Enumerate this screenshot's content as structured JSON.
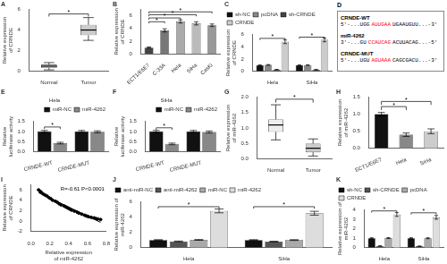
{
  "chart_data": [
    {
      "type": "box",
      "title": "A",
      "ylabel": "Relative expression\nof CRNDE",
      "categories": [
        "Normal",
        "Tumor"
      ],
      "boxes": [
        {
          "median": 0.5,
          "q1": 0.35,
          "q3": 0.65,
          "whisker_low": 0.15,
          "whisker_high": 0.85
        },
        {
          "median": 4.0,
          "q1": 3.5,
          "q3": 4.5,
          "whisker_low": 3.0,
          "whisker_high": 5.2
        }
      ],
      "colors": [
        "#eeeeee",
        "#cccccc"
      ],
      "ylim": [
        0,
        6
      ],
      "yticks": [
        0,
        2,
        4,
        6
      ],
      "grid": false,
      "brackets": [
        {
          "from": 0,
          "to": 1,
          "y": 5.3,
          "top": 5.55,
          "label": "*"
        }
      ]
    },
    {
      "type": "bar",
      "title": "B",
      "ylabel": "Relative expression\nof CRNDE",
      "categories": [
        "ECT1/E6E7",
        "C-33A",
        "Hela",
        "SiHa",
        "CasKi"
      ],
      "values": [
        1.0,
        3.7,
        5.1,
        4.8,
        4.5
      ],
      "errors": [
        0.1,
        0.25,
        0.25,
        0.25,
        0.2
      ],
      "colors": [
        "#444444",
        "#777777",
        "#aaaaaa",
        "#bbbbbb",
        "#999999"
      ],
      "ylim": [
        0,
        7
      ],
      "yticks": [
        0,
        2,
        4,
        6
      ],
      "grid": false,
      "brackets": [
        {
          "from": 0,
          "to": 1,
          "y": 4.8,
          "top": 5.05,
          "label": "*"
        },
        {
          "from": 0,
          "to": 2,
          "y": 5.4,
          "top": 5.65,
          "label": "*"
        },
        {
          "from": 0,
          "to": 3,
          "y": 5.9,
          "top": 6.15,
          "label": "*"
        },
        {
          "from": 0,
          "to": 4,
          "y": 6.35,
          "top": 6.6,
          "label": "*"
        }
      ]
    },
    {
      "type": "bar",
      "title": "C",
      "ylabel": "Relative expression\nof CRNDE",
      "categories": [
        "Hela",
        "SiHa"
      ],
      "series": [
        {
          "name": "sh-NC",
          "color": "#111111",
          "values": [
            1.0,
            1.0
          ],
          "errors": [
            0.05,
            0.05
          ]
        },
        {
          "name": "pcDNA",
          "color": "#888888",
          "values": [
            1.05,
            1.02
          ],
          "errors": [
            0.06,
            0.05
          ]
        },
        {
          "name": "sh-CRNDE",
          "color": "#444444",
          "values": [
            0.3,
            0.28
          ],
          "errors": [
            0.03,
            0.03
          ]
        },
        {
          "name": "CRNDE",
          "color": "#cccccc",
          "values": [
            4.8,
            5.1
          ],
          "errors": [
            0.3,
            0.3
          ]
        }
      ],
      "ylim": [
        0,
        6
      ],
      "yticks": [
        0,
        2,
        4,
        6
      ],
      "legend": "upper left",
      "grid": false,
      "brackets": [
        {
          "group": 0,
          "from": 0,
          "to": 3,
          "y": 5.1,
          "top": 5.35,
          "label": "*"
        },
        {
          "group": 1,
          "from": 0,
          "to": 3,
          "y": 5.3,
          "top": 5.55,
          "label": "*"
        }
      ]
    },
    {
      "type": "sequence",
      "title": "D",
      "rows": [
        {
          "name": "CRNDE-WT",
          "segments": [
            {
              "text": "5'-...UGG",
              "color": "black"
            },
            {
              "text": "AUUGAA",
              "color": "red"
            },
            {
              "text": "UGAAUGUU...-3'",
              "color": "black"
            }
          ]
        },
        {
          "name": "miR-4262",
          "segments": [
            {
              "text": "3'-...GU",
              "color": "black"
            },
            {
              "text": "CCAUCAG",
              "color": "red"
            },
            {
              "text": "ACUUACAG...-5'",
              "color": "black"
            }
          ]
        },
        {
          "name": "CRNDE-MUT",
          "segments": [
            {
              "text": "5'-...UGU",
              "color": "black"
            },
            {
              "text": "AGUAAA",
              "color": "red"
            },
            {
              "text": "CAGCGACU...-3'",
              "color": "black"
            }
          ]
        }
      ]
    },
    {
      "type": "bar",
      "title": "E",
      "subtitle": "Hela",
      "ylabel": "Relative\nluciferase activity",
      "categories": [
        "CRNDE-WT",
        "CRNDE-MUT"
      ],
      "series": [
        {
          "name": "miR-NC",
          "color": "#111111",
          "values": [
            1.0,
            1.0
          ],
          "errors": [
            0.05,
            0.05
          ]
        },
        {
          "name": "miR-4262",
          "color": "#888888",
          "values": [
            0.42,
            0.98
          ],
          "errors": [
            0.04,
            0.05
          ]
        }
      ],
      "ylim": [
        0,
        1.5
      ],
      "yticks": [
        {
          "value": 0,
          "label": "0.0"
        },
        0.5,
        {
          "value": 1,
          "label": "1.0"
        },
        1.5
      ],
      "legend": "upper right",
      "grid": false,
      "brackets": [
        {
          "group": 0,
          "from": 0,
          "to": 1,
          "y": 1.12,
          "top": 1.22,
          "label": "*"
        }
      ]
    },
    {
      "type": "bar",
      "title": "F",
      "subtitle": "SiHa",
      "ylabel": "Relative\nluciferase activity",
      "categories": [
        "CRNDE-WT",
        "CRNDE-MUT"
      ],
      "series": [
        {
          "name": "miR-NC",
          "color": "#111111",
          "values": [
            1.0,
            1.0
          ],
          "errors": [
            0.05,
            0.05
          ]
        },
        {
          "name": "miR-4262",
          "color": "#888888",
          "values": [
            0.38,
            0.97
          ],
          "errors": [
            0.04,
            0.05
          ]
        }
      ],
      "ylim": [
        0,
        1.5
      ],
      "yticks": [
        {
          "value": 0,
          "label": "0.0"
        },
        0.5,
        {
          "value": 1,
          "label": "1.0"
        },
        1.5
      ],
      "legend": "upper right",
      "grid": false,
      "brackets": [
        {
          "group": 0,
          "from": 0,
          "to": 1,
          "y": 1.08,
          "top": 1.18,
          "label": "*"
        }
      ]
    },
    {
      "type": "box",
      "title": "G",
      "ylabel": "Relative expression\nof miR-4262",
      "categories": [
        "Normal",
        "Tumor"
      ],
      "boxes": [
        {
          "median": 1.1,
          "q1": 0.88,
          "q3": 1.28,
          "whisker_low": 0.62,
          "whisker_high": 1.75
        },
        {
          "median": 0.35,
          "q1": 0.22,
          "q3": 0.5,
          "whisker_low": 0.1,
          "whisker_high": 0.65
        }
      ],
      "colors": [
        "#eeeeee",
        "#cccccc"
      ],
      "ylim": [
        0,
        2.0
      ],
      "yticks": [
        {
          "value": 0,
          "label": "0.0"
        },
        0.5,
        {
          "value": 1,
          "label": "1.0"
        },
        1.5,
        {
          "value": 2,
          "label": "2.0"
        }
      ],
      "grid": false,
      "brackets": [
        {
          "from": 0,
          "to": 1,
          "y": 1.82,
          "top": 1.93,
          "label": "*"
        }
      ]
    },
    {
      "type": "bar",
      "title": "H",
      "ylabel": "Relative expression\nof miR-4262",
      "categories": [
        "ECT1/E6E7",
        "Hela",
        "SiHa"
      ],
      "values": [
        1.0,
        0.4,
        0.5
      ],
      "errors": [
        0.05,
        0.05,
        0.07
      ],
      "colors": [
        "#111111",
        "#888888",
        "#cccccc"
      ],
      "ylim": [
        0,
        1.5
      ],
      "yticks": [
        {
          "value": 0,
          "label": "0.0"
        },
        0.5,
        {
          "value": 1,
          "label": "1.0"
        },
        1.5
      ],
      "grid": false,
      "brackets": [
        {
          "from": 0,
          "to": 1,
          "y": 1.12,
          "top": 1.22,
          "label": "*"
        },
        {
          "from": 0,
          "to": 2,
          "y": 1.27,
          "top": 1.37,
          "label": "*"
        }
      ]
    },
    {
      "type": "scatter",
      "title": "I",
      "xlabel": "Relative expression\nof miR-4262",
      "ylabel": "Relative expression\nof CRNDE",
      "annotation": "R=-0.61 P<0.0001",
      "color": "#000000",
      "x": [
        0.08,
        0.1,
        0.11,
        0.13,
        0.15,
        0.17,
        0.19,
        0.21,
        0.23,
        0.26,
        0.28,
        0.3,
        0.32,
        0.35,
        0.37,
        0.39,
        0.41,
        0.43,
        0.46,
        0.49,
        0.51,
        0.54,
        0.57,
        0.59,
        0.61,
        0.64,
        0.67,
        0.69,
        0.71,
        0.74
      ],
      "values": [
        6.0,
        5.7,
        5.5,
        5.2,
        5.0,
        4.8,
        4.5,
        4.3,
        4.0,
        3.8,
        3.6,
        3.3,
        3.1,
        2.9,
        2.7,
        2.5,
        2.3,
        2.1,
        1.9,
        1.7,
        1.5,
        1.3,
        1.1,
        0.95,
        0.82,
        0.7,
        0.58,
        0.46,
        0.38,
        0.28
      ],
      "fit": {
        "x": [
          0.08,
          0.74
        ],
        "values": [
          5.462,
          -0.2786
        ]
      },
      "xlim": [
        0.0,
        0.8
      ],
      "xticks": [
        {
          "value": 0,
          "label": "0.0"
        },
        0.2,
        0.4,
        0.6,
        0.8
      ],
      "ylim": [
        -2,
        7
      ],
      "yticks": [
        -2,
        0,
        2,
        4,
        6
      ],
      "grid": false
    },
    {
      "type": "bar",
      "title": "J",
      "ylabel": "Relative expression of\nmiR-4262",
      "categories": [
        "Hela",
        "SiHa"
      ],
      "series": [
        {
          "name": "anti-miR-NC",
          "color": "#111111",
          "values": [
            1.0,
            1.0
          ],
          "errors": [
            0.05,
            0.05
          ]
        },
        {
          "name": "anti-miR-4262",
          "color": "#555555",
          "values": [
            0.82,
            0.8
          ],
          "errors": [
            0.05,
            0.05
          ]
        },
        {
          "name": "miR-NC",
          "color": "#aaaaaa",
          "values": [
            1.02,
            1.0
          ],
          "errors": [
            0.05,
            0.05
          ]
        },
        {
          "name": "miR-4262",
          "color": "#dddddd",
          "values": [
            4.8,
            4.5
          ],
          "errors": [
            0.25,
            0.25
          ]
        }
      ],
      "ylim": [
        0,
        6
      ],
      "yticks": [
        0,
        2,
        4,
        6
      ],
      "legend": "upper left",
      "grid": false,
      "brackets": [
        {
          "group": 0,
          "from": 0,
          "to": 3,
          "y": 5.1,
          "top": 5.35,
          "label": "*"
        },
        {
          "group": 1,
          "from": 0,
          "to": 3,
          "y": 5.1,
          "top": 5.35,
          "label": "*"
        }
      ]
    },
    {
      "type": "bar",
      "title": "K",
      "ylabel": "Relative expression of\nmiR-4262",
      "categories": [
        "Hela",
        "SiHa"
      ],
      "series": [
        {
          "name": "sh-NC",
          "color": "#111111",
          "values": [
            1.0,
            1.0
          ],
          "errors": [
            0.05,
            0.05
          ]
        },
        {
          "name": "sh-CRNDE",
          "color": "#555555",
          "values": [
            0.18,
            0.16
          ],
          "errors": [
            0.02,
            0.02
          ]
        },
        {
          "name": "pcDNA",
          "color": "#aaaaaa",
          "values": [
            1.02,
            1.0
          ],
          "errors": [
            0.05,
            0.05
          ]
        },
        {
          "name": "CRNDE",
          "color": "#dddddd",
          "values": [
            3.5,
            3.2
          ],
          "errors": [
            0.2,
            0.2
          ]
        }
      ],
      "ylim": [
        0,
        4
      ],
      "yticks": [
        0,
        1,
        2,
        3,
        4
      ],
      "legend": "upper left",
      "grid": false,
      "brackets": [
        {
          "group": 0,
          "from": 0,
          "to": 3,
          "y": 3.7,
          "top": 3.88,
          "label": "*"
        },
        {
          "group": 1,
          "from": 0,
          "to": 3,
          "y": 3.5,
          "top": 3.68,
          "label": "*"
        }
      ]
    }
  ]
}
